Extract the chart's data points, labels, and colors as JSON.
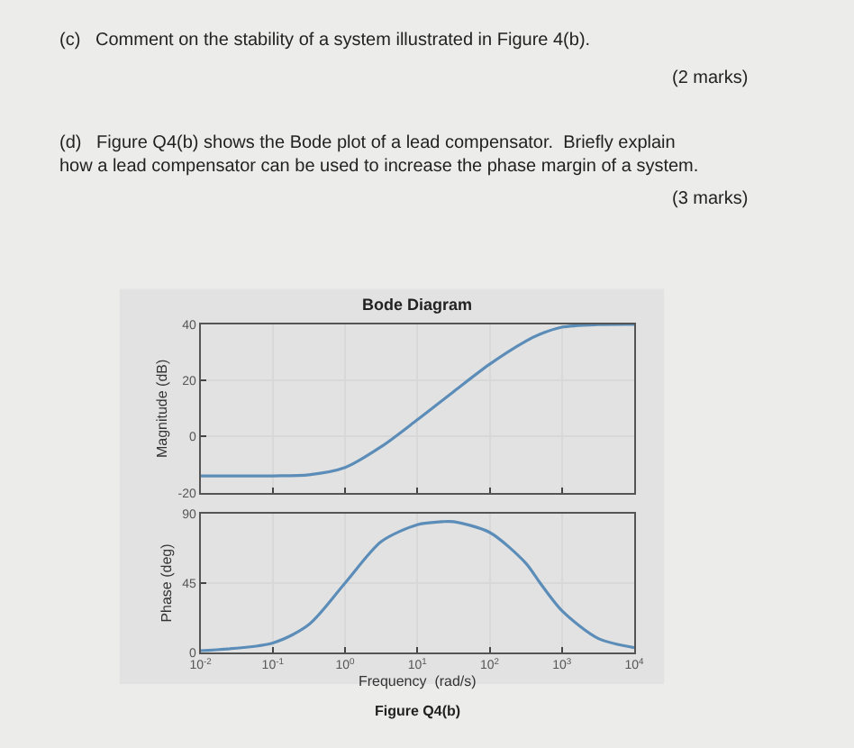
{
  "chart_data": [
    {
      "type": "line",
      "title": "Bode Diagram",
      "ylabel": "Magnitude (dB)",
      "annotations": [
        "(c)   Comment on the stability of a system illustrated in Figure 4(b).",
        "(2 marks)",
        "(d)   Figure Q4(b) shows the Bode plot of a lead compensator.  Briefly explain how a lead compensator can be used to increase the phase margin of a system.",
        "(3 marks)"
      ],
      "x": [
        0.01,
        0.1,
        0.316,
        1,
        3.16,
        10,
        31.6,
        100,
        316,
        500,
        1000,
        3160,
        10000
      ],
      "series": [
        {
          "color": "#5b8db8",
          "values": [
            -14,
            -14,
            -13.6,
            -11,
            -3.6,
            6,
            16,
            25.8,
            34,
            36.5,
            39,
            39.9,
            40
          ]
        }
      ],
      "log": "x",
      "xlim": [
        0.01,
        10000
      ],
      "xticks": [
        0.01,
        0.1,
        1,
        10,
        100,
        1000,
        10000
      ],
      "ylim": [
        -20,
        40
      ],
      "yticks": [
        -20,
        0,
        20,
        40
      ],
      "grid": true,
      "tick_labels": "y",
      "marker": "none",
      "line_style": "solid"
    },
    {
      "type": "line",
      "xlabel": "Frequency  (rad/s)",
      "ylabel": "Phase (deg)",
      "annotations": [
        "Figure Q4(b)"
      ],
      "x": [
        0.01,
        0.1,
        0.316,
        1,
        3.16,
        10,
        22.4,
        31.6,
        100,
        316,
        500,
        1000,
        3160,
        10000
      ],
      "series": [
        {
          "color": "#5b8db8",
          "values": [
            1,
            6,
            18,
            45,
            72,
            83,
            85,
            85,
            78,
            58,
            45,
            27,
            9,
            3
          ]
        }
      ],
      "log": "x",
      "xlim": [
        0.01,
        10000
      ],
      "xticks": [
        {
          "value": 0.01,
          "label": "10$^{-2}$"
        },
        {
          "value": 0.1,
          "label": "10$^{-1}$"
        },
        {
          "value": 1,
          "label": "10$^{0}$"
        },
        {
          "value": 10,
          "label": "10$^{1}$"
        },
        {
          "value": 100,
          "label": "10$^{2}$"
        },
        {
          "value": 1000,
          "label": "10$^{3}$"
        },
        {
          "value": 10000,
          "label": "10$^{4}$"
        }
      ],
      "ylim": [
        0,
        90
      ],
      "yticks": [
        0,
        45,
        90
      ],
      "grid": true,
      "marker": "none",
      "line_style": "solid"
    }
  ]
}
